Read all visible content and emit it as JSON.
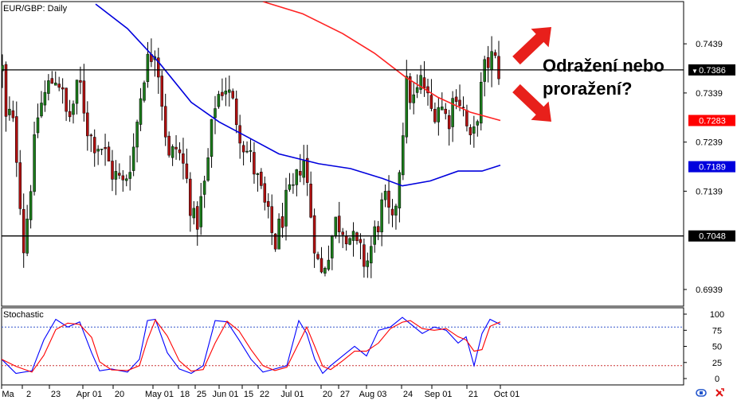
{
  "chart_data": [
    {
      "type": "candlestick",
      "title": "EUR/GBP: Daily",
      "annotation": "Odražení nebo\nproražení?",
      "y_ticks": [
        "0.7439",
        "0.7339",
        "0.7239",
        "0.7139",
        "0.6939"
      ],
      "ylim": [
        0.6905,
        0.7525
      ],
      "price_labels": [
        {
          "value": 0.7386,
          "text": "0.7386",
          "color": "#000000",
          "marker": "▼"
        },
        {
          "value": 0.7283,
          "text": "0.7283",
          "color": "#ff0000"
        },
        {
          "value": 0.7189,
          "text": "0.7189",
          "color": "#0000dd"
        },
        {
          "value": 0.7048,
          "text": "0.7048",
          "color": "#000000"
        }
      ],
      "horizontal_levels": [
        0.7386,
        0.7048
      ],
      "bull_color": "#1a7a1a",
      "bear_color": "#b01010",
      "ma_series": [
        {
          "color": "#0000dd"
        },
        {
          "color": "#ff2222"
        }
      ],
      "x_labels": [
        "Ma",
        "2",
        "23",
        "Apr 01",
        "20",
        "May 01",
        "18",
        "25",
        "Jun 01",
        "15",
        "22",
        "Jul 01",
        "20",
        "27",
        "Aug 03",
        "24",
        "Sep 01",
        "21",
        "Oct 01"
      ]
    },
    {
      "type": "line",
      "title": "Stochastic",
      "y_ticks": [
        "100",
        "75",
        "50",
        "25",
        "0"
      ],
      "ylim": [
        0,
        100
      ],
      "levels": [
        80,
        20
      ],
      "series": [
        {
          "color": "#0000ff"
        },
        {
          "color": "#ff0000"
        }
      ]
    }
  ],
  "colors": {
    "up_arrow": "#e8201b",
    "down_arrow": "#e8201b"
  },
  "icons": [
    "scroll-left-icon",
    "scroll-right-icon"
  ]
}
